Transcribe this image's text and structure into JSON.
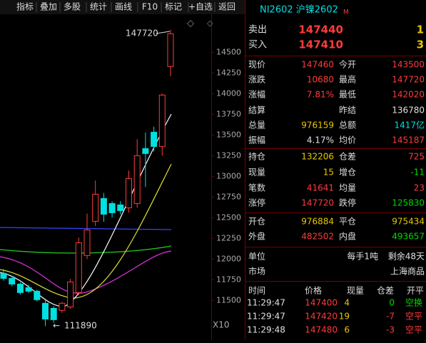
{
  "toolbar": [
    "指标",
    "叠加",
    "多股",
    "统计",
    "画线",
    "F10",
    "标记",
    "+自选",
    "返回"
  ],
  "header": {
    "symbol": "NI2602 沪镍2602",
    "badge": "M"
  },
  "orderbook": [
    [
      "卖出",
      "147440",
      "1"
    ],
    [
      "买入",
      "147410",
      "3"
    ]
  ],
  "stats": [
    {
      "left": [
        "现价",
        "147460"
      ],
      "right": [
        "今开",
        "143500"
      ]
    },
    {
      "left": [
        "涨跌",
        "10680"
      ],
      "right": [
        "最高",
        "147720"
      ]
    },
    {
      "left": [
        "涨幅",
        "7.81%"
      ],
      "right": [
        "最低",
        "142020"
      ]
    },
    {
      "left": [
        "结算"
      ],
      "right": [
        "昨结",
        "136780"
      ]
    },
    {
      "left": [
        "总量",
        "976159"
      ],
      "right": [
        "总额",
        "1417亿"
      ]
    },
    {
      "left": [
        "振幅",
        "4.17%"
      ],
      "right": [
        "均价",
        "145187"
      ]
    },
    {
      "left": [
        "持仓",
        "132206"
      ],
      "right": [
        "仓差",
        "725"
      ]
    },
    {
      "left": [
        "现量",
        "15"
      ],
      "right": [
        "增仓",
        "-11"
      ]
    },
    {
      "left": [
        "笔数",
        "41641"
      ],
      "right": [
        "均量",
        "23"
      ]
    },
    {
      "left": [
        "涨停",
        "147720"
      ],
      "right": [
        "跌停",
        "125830"
      ]
    },
    {
      "left": [
        "开仓",
        "976884"
      ],
      "right": [
        "平仓",
        "975434"
      ]
    },
    {
      "left": [
        "外盘",
        "482502"
      ],
      "right": [
        "内盘",
        "493657"
      ]
    }
  ],
  "info": [
    [
      "单位",
      "每手1吨",
      "剩余48天"
    ],
    [
      "市场",
      "上海商品"
    ]
  ],
  "trades": {
    "columns": [
      "时间",
      "价格",
      "现量",
      "仓差",
      "开平"
    ],
    "rows": [
      [
        "11:29:47",
        "147400",
        "4",
        "0",
        "空换"
      ],
      [
        "11:29:47",
        "147420",
        "19",
        "-7",
        "空平"
      ],
      [
        "11:29:48",
        "147480",
        "6",
        "-3",
        "空平"
      ]
    ]
  },
  "kline": {
    "ylim": [
      11020,
      14960
    ],
    "yticks": [
      14500,
      14250,
      14000,
      13750,
      13500,
      13250,
      13000,
      12750,
      12500,
      12250,
      12000,
      11750,
      11500
    ],
    "candles": [
      {
        "open": 11828,
        "high": 11880,
        "low": 11740,
        "close": 11767
      },
      {
        "open": 11767,
        "high": 11800,
        "low": 11670,
        "close": 11698
      },
      {
        "open": 11698,
        "high": 11720,
        "low": 11570,
        "close": 11595
      },
      {
        "open": 11655,
        "high": 11690,
        "low": 11590,
        "close": 11612
      },
      {
        "open": 11612,
        "high": 11630,
        "low": 11490,
        "close": 11509
      },
      {
        "open": 11466,
        "high": 11500,
        "low": 11189,
        "close": 11275
      },
      {
        "open": 11405,
        "high": 11430,
        "low": 11230,
        "close": 11267
      },
      {
        "open": 11380,
        "high": 11480,
        "low": 11350,
        "close": 11466
      },
      {
        "open": 11422,
        "high": 11760,
        "low": 11400,
        "close": 11724
      },
      {
        "open": 11595,
        "high": 12260,
        "low": 11560,
        "close": 12198
      },
      {
        "open": 12043,
        "high": 12550,
        "low": 12000,
        "close": 12353
      },
      {
        "open": 12457,
        "high": 12950,
        "low": 12400,
        "close": 12784
      },
      {
        "open": 12733,
        "high": 12800,
        "low": 12450,
        "close": 12543
      },
      {
        "open": 12672,
        "high": 12700,
        "low": 12500,
        "close": 12560
      },
      {
        "open": 12655,
        "high": 12700,
        "low": 12540,
        "close": 12586
      },
      {
        "open": 12620,
        "high": 13070,
        "low": 12560,
        "close": 12974
      },
      {
        "open": 12672,
        "high": 13450,
        "low": 12620,
        "close": 13250
      },
      {
        "open": 13336,
        "high": 13530,
        "low": 12870,
        "close": 13276
      },
      {
        "open": 13534,
        "high": 13600,
        "low": 13300,
        "close": 13362
      },
      {
        "open": 13362,
        "high": 14000,
        "low": 13250,
        "close": 13983
      },
      {
        "open": 14328,
        "high": 14772,
        "low": 14210,
        "close": 14724
      }
    ],
    "high_label": "147720",
    "low_label": "111890",
    "scale_label": "X10"
  }
}
